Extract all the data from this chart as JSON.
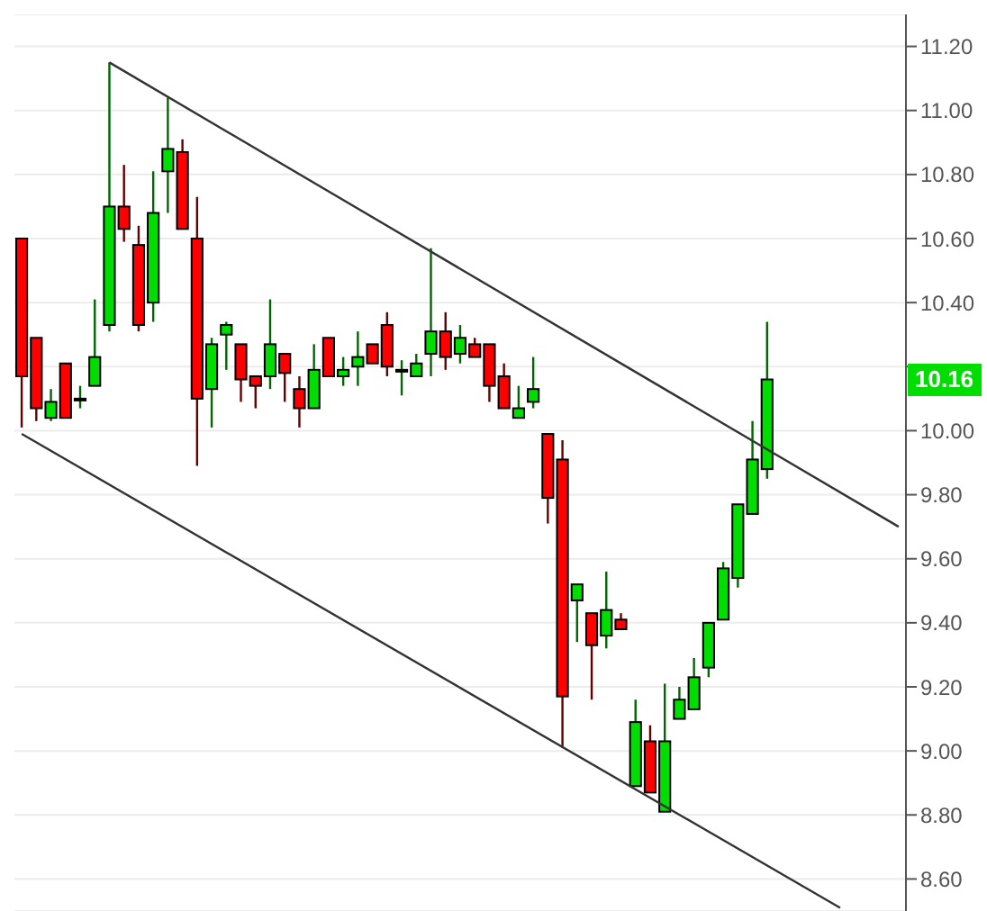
{
  "chart_data": {
    "type": "candlestick",
    "categories": [
      null,
      null,
      null,
      null,
      null,
      null,
      null,
      null,
      null,
      null,
      null,
      null,
      null,
      null,
      null,
      null,
      null,
      null,
      null,
      null,
      null,
      null,
      null,
      null,
      null,
      null,
      null,
      null,
      null,
      null,
      null,
      null,
      null,
      null,
      null,
      null,
      null,
      null,
      null,
      null,
      null,
      null,
      null,
      null,
      null,
      null,
      null,
      null,
      null,
      null,
      null,
      null,
      null,
      null,
      null,
      null,
      null,
      null,
      null,
      null,
      null
    ],
    "ohlc": [
      [
        10.6,
        10.6,
        10.01,
        10.17
      ],
      [
        10.29,
        10.29,
        10.03,
        10.07
      ],
      [
        10.04,
        10.13,
        10.03,
        10.09
      ],
      [
        10.21,
        10.21,
        10.04,
        10.04
      ],
      [
        10.1,
        10.14,
        10.07,
        10.1
      ],
      [
        10.14,
        10.41,
        10.14,
        10.23
      ],
      [
        10.33,
        11.15,
        10.31,
        10.7
      ],
      [
        10.7,
        10.83,
        10.59,
        10.63
      ],
      [
        10.58,
        10.64,
        10.31,
        10.33
      ],
      [
        10.4,
        10.81,
        10.34,
        10.68
      ],
      [
        10.81,
        11.04,
        10.68,
        10.88
      ],
      [
        10.87,
        10.91,
        10.63,
        10.63
      ],
      [
        10.6,
        10.73,
        9.89,
        10.1
      ],
      [
        10.13,
        10.29,
        10.01,
        10.27
      ],
      [
        10.3,
        10.34,
        10.19,
        10.33
      ],
      [
        10.27,
        10.27,
        10.09,
        10.16
      ],
      [
        10.17,
        10.17,
        10.07,
        10.14
      ],
      [
        10.17,
        10.41,
        10.13,
        10.27
      ],
      [
        10.24,
        10.24,
        10.09,
        10.18
      ],
      [
        10.13,
        10.17,
        10.01,
        10.07
      ],
      [
        10.07,
        10.27,
        10.07,
        10.19
      ],
      [
        10.29,
        10.29,
        10.17,
        10.17
      ],
      [
        10.17,
        10.23,
        10.14,
        10.19
      ],
      [
        10.2,
        10.31,
        10.14,
        10.23
      ],
      [
        10.27,
        10.27,
        10.21,
        10.21
      ],
      [
        10.33,
        10.37,
        10.17,
        10.2
      ],
      [
        10.19,
        10.22,
        10.11,
        10.19
      ],
      [
        10.17,
        10.24,
        10.17,
        10.21
      ],
      [
        10.24,
        10.57,
        10.17,
        10.31
      ],
      [
        10.31,
        10.37,
        10.19,
        10.23
      ],
      [
        10.24,
        10.33,
        10.21,
        10.29
      ],
      [
        10.27,
        10.29,
        10.23,
        10.23
      ],
      [
        10.27,
        10.27,
        10.09,
        10.14
      ],
      [
        10.17,
        10.21,
        10.07,
        10.07
      ],
      [
        10.04,
        10.14,
        10.04,
        10.07
      ],
      [
        10.09,
        10.23,
        10.07,
        10.13
      ],
      [
        9.99,
        9.99,
        9.71,
        9.79
      ],
      [
        9.91,
        9.97,
        9.01,
        9.17
      ],
      [
        9.47,
        9.52,
        9.34,
        9.52
      ],
      [
        9.43,
        9.43,
        9.16,
        9.33
      ],
      [
        9.36,
        9.56,
        9.32,
        9.44
      ],
      [
        9.41,
        9.43,
        9.38,
        9.38
      ],
      [
        8.89,
        9.16,
        8.89,
        9.09
      ],
      [
        9.03,
        9.08,
        8.87,
        8.87
      ],
      [
        8.81,
        9.21,
        8.81,
        9.03
      ],
      [
        9.1,
        9.2,
        9.1,
        9.16
      ],
      [
        9.13,
        9.29,
        9.13,
        9.23
      ],
      [
        9.26,
        9.4,
        9.23,
        9.4
      ],
      [
        9.41,
        9.59,
        9.41,
        9.57
      ],
      [
        9.54,
        9.77,
        9.51,
        9.77
      ],
      [
        9.74,
        10.03,
        9.74,
        9.91
      ],
      [
        9.88,
        10.34,
        9.85,
        10.16
      ],
      null,
      null,
      null,
      null,
      null,
      null,
      null,
      null,
      null
    ],
    "colors": [
      "#ff0000",
      "#ff0000",
      "#00dd00",
      "#ff0000",
      "#00dd00",
      "#00dd00",
      "#00dd00",
      "#ff0000",
      "#ff0000",
      "#00dd00",
      "#00dd00",
      "#ff0000",
      "#ff0000",
      "#00dd00",
      "#00dd00",
      "#ff0000",
      "#ff0000",
      "#00dd00",
      "#ff0000",
      "#ff0000",
      "#00dd00",
      "#ff0000",
      "#00dd00",
      "#00dd00",
      "#ff0000",
      "#ff0000",
      "#00dd00",
      "#00dd00",
      "#00dd00",
      "#ff0000",
      "#00dd00",
      "#ff0000",
      "#ff0000",
      "#ff0000",
      "#00dd00",
      "#00dd00",
      "#ff0000",
      "#ff0000",
      "#00dd00",
      "#ff0000",
      "#00dd00",
      "#ff0000",
      "#00dd00",
      "#ff0000",
      "#00dd00",
      "#00dd00",
      "#00dd00",
      "#00dd00",
      "#00dd00",
      "#00dd00",
      "#00dd00",
      "#00dd00",
      null,
      null,
      null,
      null,
      null,
      null,
      null,
      null,
      null
    ],
    "series": [
      {
        "type": "line",
        "color": "#333333",
        "values": [
          null,
          null,
          null,
          null,
          null,
          null,
          11.15,
          null,
          null,
          null,
          null,
          null,
          null,
          null,
          null,
          null,
          null,
          null,
          null,
          null,
          null,
          null,
          null,
          null,
          null,
          null,
          null,
          null,
          null,
          null,
          null,
          null,
          null,
          null,
          null,
          null,
          null,
          null,
          null,
          null,
          null,
          null,
          null,
          null,
          null,
          null,
          null,
          null,
          null,
          null,
          null,
          null,
          null,
          null,
          null,
          null,
          null,
          null,
          null,
          null,
          9.7
        ]
      },
      {
        "type": "line",
        "color": "#333333",
        "values": [
          9.99,
          null,
          null,
          null,
          null,
          null,
          null,
          null,
          null,
          null,
          null,
          null,
          null,
          null,
          null,
          null,
          null,
          null,
          null,
          null,
          null,
          null,
          null,
          null,
          null,
          null,
          null,
          null,
          null,
          null,
          null,
          null,
          null,
          null,
          null,
          null,
          null,
          null,
          null,
          null,
          null,
          null,
          null,
          null,
          null,
          null,
          null,
          null,
          null,
          null,
          null,
          null,
          null,
          null,
          null,
          null,
          8.51,
          null,
          null,
          null,
          null
        ]
      }
    ],
    "ylim": [
      8.5,
      11.3
    ],
    "yticks": [
      {
        "value": 8.6,
        "label": "8.60"
      },
      {
        "value": 8.8,
        "label": "8.80"
      },
      {
        "value": 9.0,
        "label": "9.00"
      },
      {
        "value": 9.2,
        "label": "9.20"
      },
      {
        "value": 9.4,
        "label": "9.40"
      },
      {
        "value": 9.6,
        "label": "9.60"
      },
      {
        "value": 9.8,
        "label": "9.80"
      },
      {
        "value": 10.0,
        "label": "10.00"
      },
      {
        "value": 10.2,
        "label": null
      },
      {
        "value": 10.4,
        "label": "10.40"
      },
      {
        "value": 10.6,
        "label": "10.60"
      },
      {
        "value": 10.8,
        "label": "10.80"
      },
      {
        "value": 11.0,
        "label": "11.00"
      },
      {
        "value": 11.2,
        "label": "11.20"
      }
    ],
    "annotations": [
      {
        "text": "10.16",
        "y": 10.16
      }
    ],
    "grid": "y",
    "tick_labels": "y"
  }
}
